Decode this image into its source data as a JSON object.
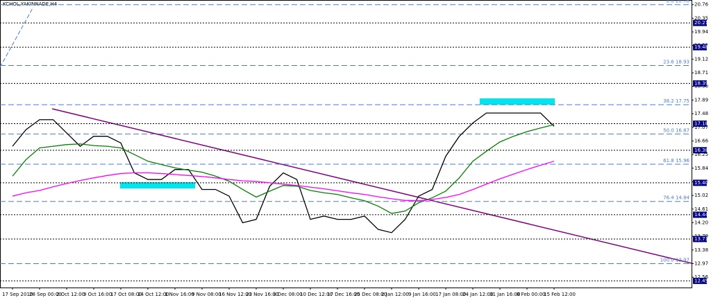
{
  "chart_data": {
    "type": "line",
    "title": "KCHOL,YAKINNADE,H4",
    "categories": [
      "17 Sep 2010",
      null,
      "28 Sep 00:00",
      null,
      "2 Oct 12:00",
      null,
      "9 Oct 16:00",
      null,
      "17 Oct 08:00",
      null,
      "24 Oct 12:00",
      null,
      "1 Nov 16:00",
      null,
      "9 Nov 08:00",
      null,
      "16 Nov 12:00",
      null,
      "23 Nov 16:00",
      null,
      "3 Dec 08:00",
      null,
      "10 Dec 12:00",
      null,
      "17 Dec 16:00",
      null,
      "25 Dec 08:00",
      null,
      "2 Jan 12:00",
      null,
      "9 Jan 16:00",
      null,
      "17 Jan 08:00",
      null,
      "24 Jan 12:00",
      null,
      "31 Jan 16:00",
      null,
      "8 Feb 00:00",
      null,
      "15 Feb 12:00"
    ],
    "series": [
      {
        "color": "#000000",
        "values": [
          16.5,
          17.0,
          17.3,
          17.3,
          16.9,
          16.5,
          16.8,
          16.8,
          16.6,
          15.7,
          15.5,
          15.5,
          15.8,
          15.8,
          15.2,
          15.2,
          15.0,
          14.2,
          14.3,
          15.3,
          15.7,
          15.5,
          14.3,
          14.4,
          14.3,
          14.3,
          14.4,
          14.0,
          13.9,
          14.3,
          15.0,
          15.2,
          16.2,
          16.8,
          17.2,
          17.5,
          17.5,
          17.5,
          17.5,
          17.5,
          17.1
        ]
      },
      {
        "color": "#008000",
        "values": [
          15.6,
          16.1,
          16.45,
          16.5,
          16.55,
          16.57,
          16.52,
          16.5,
          16.45,
          16.25,
          16.05,
          15.95,
          15.85,
          15.78,
          15.72,
          15.6,
          15.45,
          15.2,
          14.97,
          15.15,
          15.32,
          15.3,
          15.17,
          15.1,
          15.05,
          14.95,
          14.86,
          14.7,
          14.48,
          14.55,
          14.8,
          14.95,
          15.15,
          15.55,
          16.05,
          16.35,
          16.63,
          16.8,
          16.94,
          17.05,
          17.15
        ]
      },
      {
        "color": "#ff00ff",
        "values": [
          15.0,
          15.1,
          15.17,
          15.28,
          15.38,
          15.47,
          15.55,
          15.62,
          15.68,
          15.7,
          15.7,
          15.68,
          15.65,
          15.62,
          15.59,
          15.55,
          15.5,
          15.46,
          15.44,
          15.4,
          15.36,
          15.32,
          15.27,
          15.22,
          15.16,
          15.1,
          15.05,
          14.98,
          14.92,
          14.87,
          14.86,
          14.9,
          14.96,
          15.05,
          15.2,
          15.36,
          15.52,
          15.66,
          15.8,
          15.93,
          16.05
        ]
      }
    ],
    "ylim": [
      12.25,
      20.9
    ],
    "yticks": [
      20.76,
      20.35,
      19.94,
      19.53,
      19.12,
      18.71,
      {
        "value": 18.3,
        "label": "18.30"
      },
      17.89,
      17.48,
      17.07,
      16.66,
      16.25,
      15.84,
      15.43,
      15.02,
      14.61,
      {
        "value": 14.2,
        "label": "14.20"
      },
      13.79,
      13.38,
      12.97,
      12.56
    ],
    "levels": [
      20.21,
      19.48,
      18.39,
      17.18,
      16.38,
      {
        "value": 15.4,
        "label": "15.40"
      },
      14.44,
      13.71,
      12.45
    ],
    "fib_levels": [
      {
        "value": 20.76,
        "label": "0.0 20.76"
      },
      {
        "value": 18.93,
        "label": "23.6 18.93"
      },
      {
        "value": 17.75,
        "label": "38.2 17.75"
      },
      {
        "value": 16.87,
        "label": "50.0 16.87"
      },
      {
        "value": 15.96,
        "label": "61.8 15.96"
      },
      {
        "value": 14.84,
        "label": "76.4 14.84"
      },
      {
        "value": 12.97,
        "label": "100.0 12.97"
      }
    ],
    "grid": true
  }
}
